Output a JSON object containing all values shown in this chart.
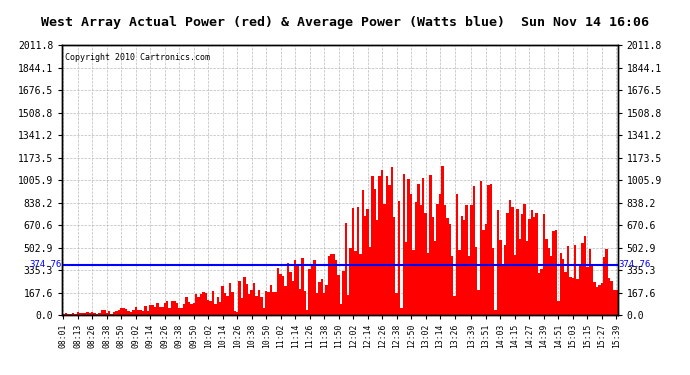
{
  "title": "West Array Actual Power (red) & Average Power (Watts blue)  Sun Nov 14 16:06",
  "copyright": "Copyright 2010 Cartronics.com",
  "avg_power": 374.76,
  "ymax": 2011.8,
  "yticks": [
    0.0,
    167.6,
    335.3,
    502.9,
    670.6,
    838.2,
    1005.9,
    1173.5,
    1341.2,
    1508.8,
    1676.5,
    1844.1,
    2011.8
  ],
  "bg_color": "#ffffff",
  "plot_bg_color": "#ffffff",
  "bar_color": "#ff0000",
  "avg_line_color": "#0000ff",
  "grid_color": "#aaaaaa",
  "title_bg_color": "#d0d0d0",
  "x_start_hour": 8,
  "x_start_min": 1,
  "x_end_hour": 15,
  "x_end_min": 39,
  "interval_minutes": 2,
  "tick_labels": [
    "08:01",
    "08:13",
    "08:26",
    "08:38",
    "08:50",
    "09:02",
    "09:14",
    "09:26",
    "09:38",
    "09:50",
    "10:02",
    "10:14",
    "10:26",
    "10:38",
    "10:50",
    "11:02",
    "11:14",
    "11:26",
    "11:38",
    "11:50",
    "12:02",
    "12:14",
    "12:26",
    "12:38",
    "12:50",
    "13:02",
    "13:14",
    "13:26",
    "13:39",
    "13:51",
    "14:03",
    "14:15",
    "14:27",
    "14:39",
    "14:51",
    "15:03",
    "15:15",
    "15:27",
    "15:39"
  ]
}
